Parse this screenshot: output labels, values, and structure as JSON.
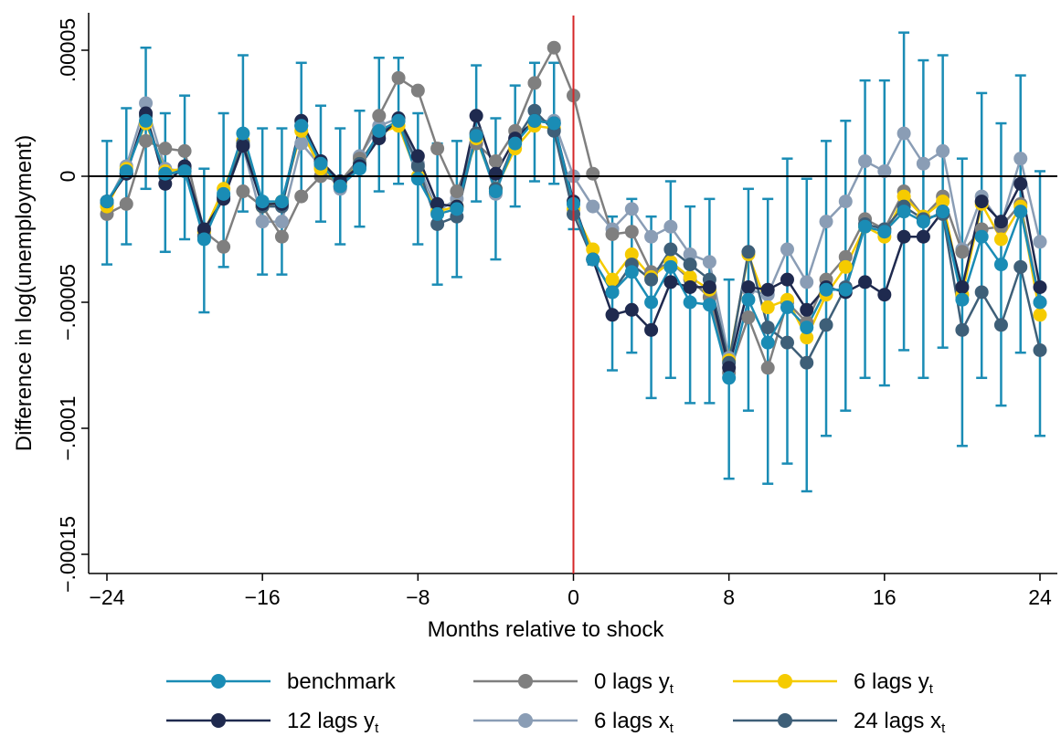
{
  "chart_data": {
    "type": "line",
    "title": "",
    "xlabel": "Months relative to shock",
    "ylabel": "Difference in log(unemployment)",
    "xlim": [
      -24,
      24
    ],
    "ylim": [
      -0.00016,
      6e-05
    ],
    "xticks": [
      -24,
      -16,
      -8,
      0,
      8,
      16,
      24
    ],
    "xtick_labels": [
      "−24",
      "−16",
      "−8",
      "0",
      "8",
      "16",
      "24"
    ],
    "yticks": [
      -0.00015,
      -0.0001,
      -5e-05,
      0,
      5e-05
    ],
    "ytick_labels": [
      "−.00015",
      "−.0001",
      "−.00005",
      "0",
      ".00005"
    ],
    "reference_lines": {
      "y": 0,
      "x": 0,
      "x_color": "#d62728"
    },
    "grid": false,
    "legend_position": "bottom",
    "x": [
      -24,
      -23,
      -22,
      -21,
      -20,
      -19,
      -18,
      -17,
      -16,
      -15,
      -14,
      -13,
      -12,
      -11,
      -10,
      -9,
      -8,
      -7,
      -6,
      -5,
      -4,
      -3,
      -2,
      -1,
      0,
      1,
      2,
      3,
      4,
      5,
      6,
      7,
      8,
      9,
      10,
      11,
      12,
      13,
      14,
      15,
      16,
      17,
      18,
      19,
      20,
      21,
      22,
      23,
      24
    ],
    "series": [
      {
        "name": "benchmark",
        "legend_main": "benchmark",
        "legend_sub": "",
        "color": "#1a8cb5",
        "values": [
          -1e-05,
          2e-06,
          2.2e-05,
          1e-06,
          2e-06,
          -2.5e-05,
          -7e-06,
          1.7e-05,
          -1e-05,
          -1e-05,
          2e-05,
          5e-06,
          -4e-06,
          3e-06,
          1.8e-05,
          2.2e-05,
          -1e-06,
          -1.5e-05,
          -1.3e-05,
          1.6e-05,
          -6e-06,
          1.3e-05,
          2.2e-05,
          2.1e-05,
          -1.1e-05,
          -3.3e-05,
          -4.6e-05,
          -3.8e-05,
          -5e-05,
          -3.6e-05,
          -5e-05,
          -5.1e-05,
          -8e-05,
          -4.9e-05,
          -6.6e-05,
          -5.2e-05,
          -6e-05,
          -4.5e-05,
          -4.5e-05,
          -2e-05,
          -2.2e-05,
          -1.4e-05,
          -1.8e-05,
          -1.4e-05,
          -4.9e-05,
          -2.4e-05,
          -3.5e-05,
          -1.4e-05,
          -5e-05
        ],
        "ci_low": [
          -3.5e-05,
          -2.7e-05,
          -5e-06,
          -3e-05,
          -2.5e-05,
          -5.4e-05,
          -3.6e-05,
          -1.4e-05,
          -3.9e-05,
          -3.9e-05,
          -8e-06,
          -1.8e-05,
          -2.7e-05,
          -2e-05,
          -6e-06,
          -3e-06,
          -2.7e-05,
          -4.3e-05,
          -4e-05,
          -1e-05,
          -3.3e-05,
          -1.2e-05,
          -2e-06,
          -3e-06,
          -2.1e-05,
          -3.5e-05,
          -7.7e-05,
          -7e-05,
          -8.8e-05,
          -8e-05,
          -9e-05,
          -9e-05,
          -0.00012,
          -9.3e-05,
          -0.000122,
          -0.000114,
          -0.000125,
          -0.000103,
          -9.3e-05,
          -8e-05,
          -8.3e-05,
          -6.9e-05,
          -8e-05,
          -6.8e-05,
          -0.000107,
          -8e-05,
          -9.1e-05,
          -7e-05,
          -0.000103
        ],
        "ci_high": [
          1.4e-05,
          2.7e-05,
          5.1e-05,
          2.5e-05,
          3.2e-05,
          3e-06,
          2.5e-05,
          4.8e-05,
          1.9e-05,
          1.9e-05,
          4.5e-05,
          2.8e-05,
          1.9e-05,
          2.6e-05,
          4.7e-05,
          4.7e-05,
          2.5e-05,
          1.3e-05,
          1.4e-05,
          4.4e-05,
          2.3e-05,
          3.6e-05,
          4.5e-05,
          4.5e-05,
          0.0,
          -3e-05,
          -1.6e-05,
          -9e-06,
          -1.6e-05,
          -2e-06,
          -1.2e-05,
          -9e-06,
          -4.1e-05,
          -5e-06,
          -9e-06,
          7e-06,
          -1e-06,
          1.4e-05,
          2.2e-05,
          3.8e-05,
          3.8e-05,
          5.7e-05,
          4.6e-05,
          4.8e-05,
          7e-06,
          3.3e-05,
          2.1e-05,
          4e-05,
          2e-06
        ]
      },
      {
        "name": "0 lags y_t",
        "legend_main": "0 lags y",
        "legend_sub": "t",
        "color": "#7f7f7f",
        "values": [
          -1.5e-05,
          -1.1e-05,
          1.4e-05,
          1.1e-05,
          1e-05,
          -2.2e-05,
          -2.8e-05,
          -6e-06,
          -1.2e-05,
          -2.4e-05,
          -8e-06,
          0.0,
          -2e-06,
          7e-06,
          2.4e-05,
          3.9e-05,
          3.4e-05,
          1.1e-05,
          -6e-06,
          1.3e-05,
          6e-06,
          1.8e-05,
          3.7e-05,
          5.1e-05,
          3.2e-05,
          1e-06,
          -2.3e-05,
          -2.2e-05,
          -3.8e-05,
          -3.4e-05,
          -4.1e-05,
          -4.8e-05,
          -7.8e-05,
          -5.6e-05,
          -7.6e-05,
          -5e-05,
          -5.8e-05,
          -4.1e-05,
          -3.2e-05,
          -1.7e-05,
          -2.1e-05,
          -6e-06,
          -1.6e-05,
          -8e-06,
          -3e-05,
          -2.1e-05,
          -2e-05,
          -1.1e-05,
          -5e-05
        ]
      },
      {
        "name": "6 lags y_t",
        "legend_main": "6 lags y",
        "legend_sub": "t",
        "color": "#f5cb00",
        "values": [
          -1.2e-05,
          3e-06,
          2.1e-05,
          2e-06,
          3e-06,
          -2.2e-05,
          -5e-06,
          1.4e-05,
          -1.2e-05,
          -1e-05,
          1.8e-05,
          3e-06,
          -3e-06,
          5e-06,
          1.7e-05,
          2e-05,
          0.0,
          -1.4e-05,
          -1.2e-05,
          1.5e-05,
          -5e-06,
          1.1e-05,
          2e-05,
          1.9e-05,
          -1.3e-05,
          -2.9e-05,
          -4.1e-05,
          -3.1e-05,
          -4e-05,
          -3.4e-05,
          -4e-05,
          -4.5e-05,
          -7.3e-05,
          -3.1e-05,
          -5.2e-05,
          -4.9e-05,
          -6.4e-05,
          -4.7e-05,
          -3.6e-05,
          -2e-05,
          -2.4e-05,
          -8e-06,
          -1.6e-05,
          -1e-05,
          -4.7e-05,
          -1.1e-05,
          -2.5e-05,
          -1.2e-05,
          -5.5e-05
        ]
      },
      {
        "name": "12 lags y_t",
        "legend_main": "12 lags y",
        "legend_sub": "t",
        "color": "#1f2a4f",
        "values": [
          -1e-05,
          1e-06,
          2.5e-05,
          -3e-06,
          4e-06,
          -2.1e-05,
          -9e-06,
          1.2e-05,
          -1.1e-05,
          -1.1e-05,
          2.2e-05,
          6e-06,
          -2e-06,
          4e-06,
          1.5e-05,
          2.3e-05,
          8e-06,
          -1.1e-05,
          -1.2e-05,
          2.4e-05,
          1e-06,
          1.5e-05,
          2.2e-05,
          2.1e-05,
          -1e-05,
          -3.3e-05,
          -5.5e-05,
          -5.3e-05,
          -6.1e-05,
          -4.2e-05,
          -4.4e-05,
          -4.4e-05,
          -7.6e-05,
          -4.4e-05,
          -4.5e-05,
          -4.1e-05,
          -5.3e-05,
          -4.4e-05,
          -4.6e-05,
          -4.2e-05,
          -4.7e-05,
          -2.4e-05,
          -2.4e-05,
          -1.4e-05,
          -4.4e-05,
          -1e-05,
          -1.8e-05,
          -3e-06,
          -4.4e-05
        ]
      },
      {
        "name": "6 lags x_t",
        "legend_main": "6 lags x",
        "legend_sub": "t",
        "color": "#8a9db5",
        "values": [
          -1.1e-05,
          4e-06,
          2.9e-05,
          3e-06,
          2e-06,
          -2.3e-05,
          -8e-06,
          1.2e-05,
          -1.8e-05,
          -1.8e-05,
          1.3e-05,
          4e-06,
          -5e-06,
          8e-06,
          2e-05,
          2.3e-05,
          5e-06,
          -1.4e-05,
          -9e-06,
          1.7e-05,
          -7e-06,
          1.5e-05,
          2.2e-05,
          2.2e-05,
          0.0,
          -1.2e-05,
          -2.1e-05,
          -1.3e-05,
          -2.4e-05,
          -2e-05,
          -3.1e-05,
          -3.4e-05,
          -7.2e-05,
          -4.5e-05,
          -4.7e-05,
          -2.9e-05,
          -4.2e-05,
          -1.8e-05,
          -1e-05,
          6e-06,
          2e-06,
          1.7e-05,
          5e-06,
          1e-05,
          -2.9e-05,
          -8e-06,
          -1.9e-05,
          7e-06,
          -2.6e-05
        ]
      },
      {
        "name": "24 lags x_t",
        "legend_main": "24 lags x",
        "legend_sub": "t",
        "color": "#3e5f78",
        "values": [
          -1e-05,
          1e-06,
          2.4e-05,
          0.0,
          3e-06,
          -2.4e-05,
          -8e-06,
          1.3e-05,
          -1.2e-05,
          -1.2e-05,
          2e-05,
          6e-06,
          -4e-06,
          5e-06,
          1.7e-05,
          2.2e-05,
          4e-06,
          -1.9e-05,
          -1.6e-05,
          1.7e-05,
          -5e-06,
          1.4e-05,
          2.6e-05,
          1.8e-05,
          -1.5e-05,
          -3.3e-05,
          -4.6e-05,
          -3.5e-05,
          -4.1e-05,
          -2.9e-05,
          -3.5e-05,
          -4.1e-05,
          -7.4e-05,
          -3e-05,
          -6e-05,
          -6.6e-05,
          -7.4e-05,
          -5.9e-05,
          -4.4e-05,
          -1.9e-05,
          -2.1e-05,
          -1.2e-05,
          -1.7e-05,
          -1.5e-05,
          -6.1e-05,
          -4.6e-05,
          -5.9e-05,
          -3.6e-05,
          -6.9e-05
        ]
      }
    ],
    "legend": {
      "layout": "bottom",
      "columns": 3
    }
  }
}
